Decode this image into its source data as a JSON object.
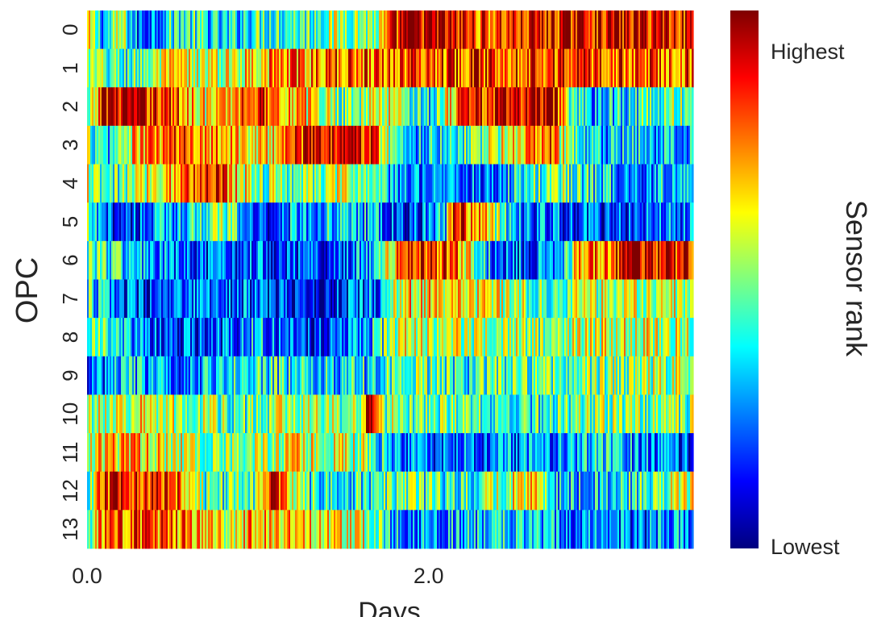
{
  "chart_data": {
    "type": "heatmap",
    "xlabel": "Days",
    "ylabel": "OPC",
    "x_ticks": [
      {
        "value": 0.0,
        "label": "0.0"
      },
      {
        "value": 2.0,
        "label": "2.0"
      }
    ],
    "xlim": [
      0.0,
      3.55
    ],
    "rows": [
      "0",
      "1",
      "2",
      "3",
      "4",
      "5",
      "6",
      "7",
      "8",
      "9",
      "10",
      "11",
      "12",
      "13"
    ],
    "colormap": "jet",
    "colormap_stops": [
      "#00007f",
      "#0000ff",
      "#007fff",
      "#00ffff",
      "#7fff7f",
      "#ffff00",
      "#ff7f00",
      "#ff0000",
      "#7f0000"
    ],
    "colorbar": {
      "label": "Sensor rank",
      "top_label": "Highest",
      "bottom_label": "Lowest",
      "range": [
        0,
        1
      ]
    },
    "segments": [
      [
        [
          0.0,
          0.6
        ],
        [
          0.1,
          0.3
        ],
        [
          0.2,
          0.55
        ],
        [
          0.3,
          0.2
        ],
        [
          0.55,
          0.45
        ],
        [
          0.8,
          0.3
        ],
        [
          1.0,
          0.45
        ],
        [
          1.1,
          0.45
        ],
        [
          1.3,
          0.45
        ],
        [
          1.5,
          0.55
        ],
        [
          1.7,
          0.5
        ],
        [
          1.85,
          0.95
        ],
        [
          2.05,
          0.9
        ],
        [
          2.35,
          0.8
        ],
        [
          2.6,
          0.85
        ],
        [
          2.9,
          0.92
        ],
        [
          3.25,
          0.9
        ],
        [
          3.55,
          0.9
        ]
      ],
      [
        [
          0.0,
          0.5
        ],
        [
          0.2,
          0.4
        ],
        [
          0.5,
          0.6
        ],
        [
          0.8,
          0.55
        ],
        [
          1.0,
          0.7
        ],
        [
          1.3,
          0.75
        ],
        [
          1.6,
          0.8
        ],
        [
          1.9,
          0.8
        ],
        [
          2.2,
          0.85
        ],
        [
          2.5,
          0.85
        ],
        [
          2.8,
          0.85
        ],
        [
          3.1,
          0.8
        ],
        [
          3.55,
          0.8
        ]
      ],
      [
        [
          0.0,
          0.3
        ],
        [
          0.1,
          0.95
        ],
        [
          0.4,
          0.88
        ],
        [
          0.75,
          0.6
        ],
        [
          1.0,
          0.9
        ],
        [
          1.2,
          0.7
        ],
        [
          1.5,
          0.5
        ],
        [
          1.8,
          0.6
        ],
        [
          2.0,
          0.35
        ],
        [
          2.2,
          0.85
        ],
        [
          2.45,
          0.85
        ],
        [
          2.7,
          0.95
        ],
        [
          2.9,
          0.3
        ],
        [
          3.55,
          0.5
        ]
      ],
      [
        [
          0.0,
          0.55
        ],
        [
          0.1,
          0.3
        ],
        [
          0.3,
          0.7
        ],
        [
          0.6,
          0.8
        ],
        [
          0.8,
          0.75
        ],
        [
          1.0,
          0.6
        ],
        [
          1.2,
          0.8
        ],
        [
          1.35,
          0.95
        ],
        [
          1.65,
          0.9
        ],
        [
          1.85,
          0.3
        ],
        [
          2.1,
          0.4
        ],
        [
          2.4,
          0.55
        ],
        [
          2.7,
          0.8
        ],
        [
          2.9,
          0.3
        ],
        [
          3.55,
          0.3
        ]
      ],
      [
        [
          0.0,
          0.6
        ],
        [
          0.1,
          0.35
        ],
        [
          0.4,
          0.65
        ],
        [
          0.75,
          0.9
        ],
        [
          1.0,
          0.5
        ],
        [
          1.3,
          0.5
        ],
        [
          1.5,
          0.55
        ],
        [
          1.7,
          0.45
        ],
        [
          1.8,
          0.25
        ],
        [
          2.05,
          0.3
        ],
        [
          2.35,
          0.2
        ],
        [
          2.55,
          0.4
        ],
        [
          2.75,
          0.5
        ],
        [
          3.2,
          0.25
        ],
        [
          3.55,
          0.4
        ]
      ],
      [
        [
          0.0,
          0.45
        ],
        [
          0.1,
          0.15
        ],
        [
          0.3,
          0.2
        ],
        [
          0.55,
          0.35
        ],
        [
          0.7,
          0.45
        ],
        [
          0.8,
          0.5
        ],
        [
          1.0,
          0.15
        ],
        [
          1.25,
          0.3
        ],
        [
          1.55,
          0.35
        ],
        [
          1.75,
          0.25
        ],
        [
          1.85,
          0.1
        ],
        [
          2.1,
          0.35
        ],
        [
          2.15,
          0.95
        ],
        [
          2.55,
          0.25
        ],
        [
          2.85,
          0.2
        ],
        [
          3.15,
          0.15
        ],
        [
          3.55,
          0.3
        ]
      ],
      [
        [
          0.0,
          0.5
        ],
        [
          0.4,
          0.25
        ],
        [
          0.7,
          0.15
        ],
        [
          1.0,
          0.25
        ],
        [
          1.3,
          0.15
        ],
        [
          1.65,
          0.3
        ],
        [
          1.85,
          0.8
        ],
        [
          2.15,
          0.85
        ],
        [
          2.4,
          0.2
        ],
        [
          2.75,
          0.25
        ],
        [
          2.9,
          0.75
        ],
        [
          3.25,
          0.92
        ],
        [
          3.55,
          0.85
        ]
      ],
      [
        [
          0.0,
          0.4
        ],
        [
          0.35,
          0.1
        ],
        [
          0.75,
          0.25
        ],
        [
          1.0,
          0.2
        ],
        [
          1.3,
          0.1
        ],
        [
          1.7,
          0.25
        ],
        [
          1.85,
          0.65
        ],
        [
          2.3,
          0.6
        ],
        [
          2.7,
          0.5
        ],
        [
          3.0,
          0.55
        ],
        [
          3.3,
          0.6
        ],
        [
          3.55,
          0.55
        ]
      ],
      [
        [
          0.0,
          0.5
        ],
        [
          0.35,
          0.2
        ],
        [
          0.7,
          0.15
        ],
        [
          1.0,
          0.3
        ],
        [
          1.3,
          0.15
        ],
        [
          1.65,
          0.3
        ],
        [
          1.85,
          0.6
        ],
        [
          2.3,
          0.55
        ],
        [
          2.7,
          0.5
        ],
        [
          3.1,
          0.6
        ],
        [
          3.55,
          0.55
        ]
      ],
      [
        [
          0.0,
          0.15
        ],
        [
          0.2,
          0.35
        ],
        [
          0.5,
          0.25
        ],
        [
          0.8,
          0.35
        ],
        [
          1.0,
          0.4
        ],
        [
          1.3,
          0.35
        ],
        [
          1.65,
          0.35
        ],
        [
          1.85,
          0.5
        ],
        [
          2.2,
          0.4
        ],
        [
          2.6,
          0.45
        ],
        [
          3.0,
          0.5
        ],
        [
          3.55,
          0.55
        ]
      ],
      [
        [
          0.0,
          0.55
        ],
        [
          0.3,
          0.6
        ],
        [
          0.6,
          0.55
        ],
        [
          0.9,
          0.45
        ],
        [
          1.2,
          0.55
        ],
        [
          1.6,
          0.5
        ],
        [
          1.65,
          0.9
        ],
        [
          1.75,
          0.5
        ],
        [
          2.2,
          0.45
        ],
        [
          2.6,
          0.4
        ],
        [
          3.0,
          0.5
        ],
        [
          3.55,
          0.5
        ]
      ],
      [
        [
          0.0,
          0.6
        ],
        [
          0.3,
          0.7
        ],
        [
          0.6,
          0.55
        ],
        [
          0.9,
          0.5
        ],
        [
          1.2,
          0.6
        ],
        [
          1.6,
          0.55
        ],
        [
          1.85,
          0.2
        ],
        [
          2.2,
          0.25
        ],
        [
          2.6,
          0.25
        ],
        [
          3.0,
          0.35
        ],
        [
          3.3,
          0.25
        ],
        [
          3.55,
          0.15
        ]
      ],
      [
        [
          0.0,
          0.3
        ],
        [
          0.1,
          0.85
        ],
        [
          0.3,
          0.9
        ],
        [
          0.55,
          0.8
        ],
        [
          0.7,
          0.45
        ],
        [
          1.0,
          0.45
        ],
        [
          1.05,
          0.9
        ],
        [
          1.15,
          0.8
        ],
        [
          1.3,
          0.4
        ],
        [
          1.6,
          0.4
        ],
        [
          1.85,
          0.45
        ],
        [
          2.2,
          0.4
        ],
        [
          2.4,
          0.5
        ],
        [
          2.65,
          0.7
        ],
        [
          2.75,
          0.3
        ],
        [
          3.1,
          0.35
        ],
        [
          3.55,
          0.6
        ]
      ],
      [
        [
          0.0,
          0.4
        ],
        [
          0.1,
          0.75
        ],
        [
          0.4,
          0.8
        ],
        [
          0.8,
          0.6
        ],
        [
          1.0,
          0.75
        ],
        [
          1.3,
          0.65
        ],
        [
          1.6,
          0.6
        ],
        [
          1.85,
          0.25
        ],
        [
          2.2,
          0.3
        ],
        [
          2.6,
          0.35
        ],
        [
          2.9,
          0.25
        ],
        [
          3.2,
          0.2
        ],
        [
          3.55,
          0.3
        ]
      ]
    ]
  }
}
